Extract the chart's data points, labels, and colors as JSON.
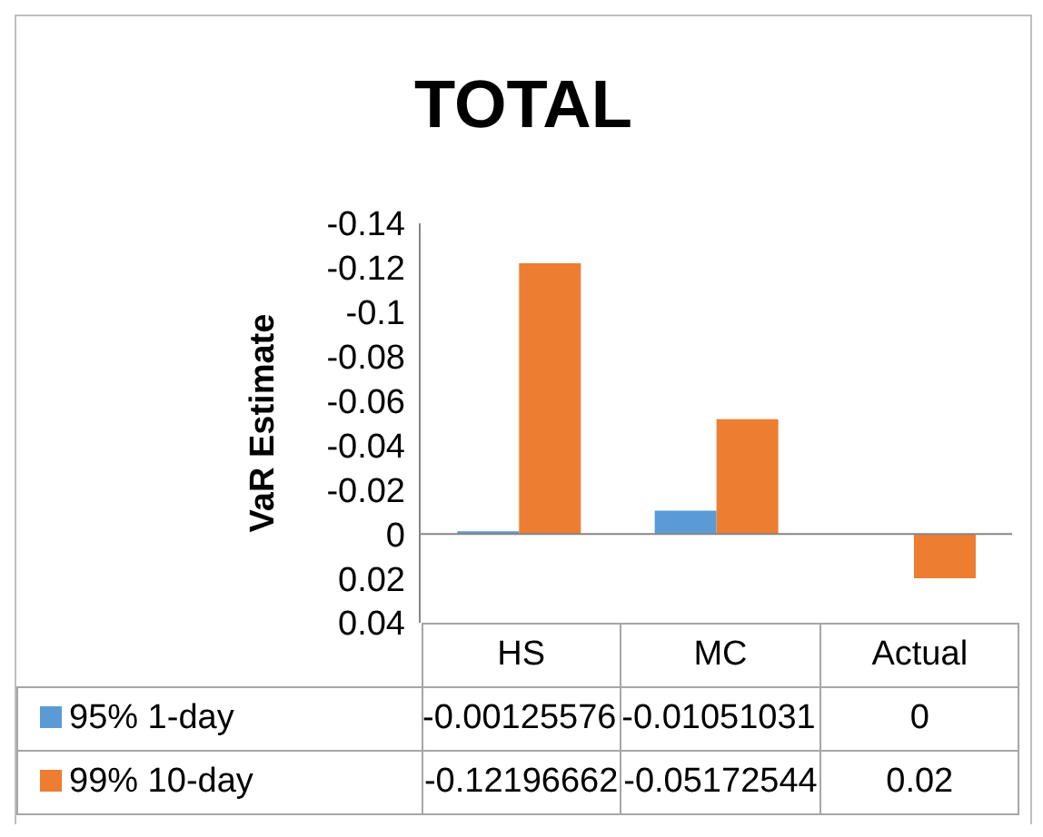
{
  "chart_data": {
    "type": "bar",
    "title": "TOTAL",
    "ylabel": "VaR Estimate",
    "categories": [
      "HS",
      "MC",
      "Actual"
    ],
    "series": [
      {
        "name": "95% 1-day",
        "color": "#5b9bd5",
        "values": [
          -0.00125576,
          -0.01051031,
          0
        ]
      },
      {
        "name": "99% 10-day",
        "color": "#ed7d31",
        "values": [
          -0.12196662,
          -0.05172544,
          0.02
        ]
      }
    ],
    "ylim": [
      0.04,
      -0.14
    ],
    "yticks": [
      -0.14,
      -0.12,
      -0.1,
      -0.08,
      -0.06,
      -0.04,
      -0.02,
      0,
      0.02,
      0.04
    ],
    "legend": "bottom",
    "data_labels": true
  }
}
